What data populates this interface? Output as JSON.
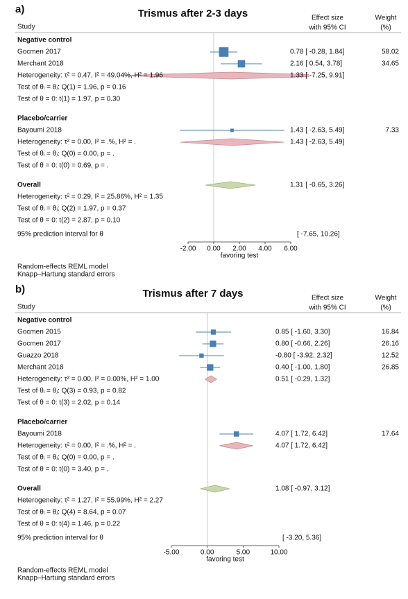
{
  "chart_data": [
    {
      "type": "forest",
      "panel": "a)",
      "title": "Trismus after 2-3 days",
      "columns": {
        "study": "Study",
        "effect": [
          "Effect size",
          "with 95% CI"
        ],
        "weight": [
          "Weight",
          "(%)"
        ]
      },
      "xlim": [
        -2,
        6
      ],
      "xticks": [
        {
          "value": -2,
          "label": "-2.00"
        },
        {
          "value": 0,
          "label": "0.00"
        },
        {
          "value": 2,
          "label": "2.00"
        },
        {
          "value": 4,
          "label": "4.00"
        },
        {
          "value": 6,
          "label": "6.00"
        }
      ],
      "xlabel": "favoring test",
      "colors": {
        "study": "#4a80b2",
        "pooled": "#e7b7bb",
        "pooled_edge": "#c98b92",
        "overall": "#cad7ad",
        "overall_edge": "#9fb27c",
        "null_line": "#c8c8c8"
      },
      "groups": [
        {
          "name": "Negative control",
          "studies": [
            {
              "name": "Gocmen 2017",
              "values": [
                0.78,
                -0.28,
                1.84
              ],
              "value_labels": "0.78 [ -0.28, 1.84]",
              "weight": 58.02
            },
            {
              "name": "Merchant 2018",
              "values": [
                2.16,
                0.54,
                3.78
              ],
              "value_labels": "2.16 [  0.54, 3.78]",
              "weight": 34.65
            }
          ],
          "pooled": {
            "values": [
              1.33,
              -7.25,
              9.91
            ],
            "value_labels": "1.33 [ -7.25, 9.91]",
            "heterogeneity": "Heterogeneity: τ² = 0.47, I² = 49.04%, H² = 1.96",
            "tests": [
              "Test of θᵢ = θⱼ: Q(1) = 1.96, p = 0.16",
              "Test of θ = 0: t(1) = 1.97, p = 0.30"
            ]
          }
        },
        {
          "name": "Placebo/carrier",
          "studies": [
            {
              "name": "Bayoumi 2018",
              "values": [
                1.43,
                -2.63,
                5.49
              ],
              "value_labels": "1.43 [ -2.63, 5.49]",
              "weight": 7.33
            }
          ],
          "pooled": {
            "values": [
              1.43,
              -2.63,
              5.49
            ],
            "value_labels": "1.43 [ -2.63, 5.49]",
            "heterogeneity": "Heterogeneity: τ² = 0.00, I² = .%, H² = .",
            "tests": [
              "Test of θᵢ = θⱼ: Q(0) = 0.00, p = .",
              "Test of θ = 0: t(0) = 0.69, p = ."
            ]
          }
        }
      ],
      "overall": {
        "name": "Overall",
        "values": [
          1.31,
          -0.65,
          3.26
        ],
        "value_labels": "1.31 [ -0.65, 3.26]",
        "heterogeneity": "Heterogeneity: τ² = 0.29, I² = 25.86%, H² = 1.35",
        "tests": [
          "Test of θᵢ = θⱼ: Q(2) = 1.97, p = 0.37",
          "Test of θ = 0: t(2) = 2.87, p = 0.10"
        ]
      },
      "prediction": "95% prediction interval for θ",
      "prediction_interval": "[ -7.65, 10.26]",
      "notes": [
        "Random-effects REML model",
        "Knapp–Hartung standard errors"
      ]
    },
    {
      "type": "forest",
      "panel": "b)",
      "title": "Trismus after 7 days",
      "columns": {
        "study": "Study",
        "effect": [
          "Effect size",
          "with 95% CI"
        ],
        "weight": [
          "Weight",
          "(%)"
        ]
      },
      "xlim": [
        -5,
        10
      ],
      "xticks": [
        {
          "value": -5,
          "label": "-5.00"
        },
        {
          "value": 0,
          "label": "0.00"
        },
        {
          "value": 5,
          "label": "5.00"
        },
        {
          "value": 10,
          "label": "10.00"
        }
      ],
      "xlabel": "favoring test",
      "colors": {
        "study": "#4a80b2",
        "pooled": "#e7b7bb",
        "pooled_edge": "#c98b92",
        "overall": "#cad7ad",
        "overall_edge": "#9fb27c",
        "null_line": "#c8c8c8"
      },
      "groups": [
        {
          "name": "Negative control",
          "studies": [
            {
              "name": "Gocmen 2015",
              "values": [
                0.85,
                -1.6,
                3.3
              ],
              "value_labels": "0.85 [ -1.60, 3.30]",
              "weight": 16.84
            },
            {
              "name": "Gocmen 2017",
              "values": [
                0.8,
                -0.66,
                2.26
              ],
              "value_labels": "0.80 [ -0.66, 2.26]",
              "weight": 26.16
            },
            {
              "name": "Guazzo 2018",
              "values": [
                -0.8,
                -3.92,
                2.32
              ],
              "value_labels": "-0.80 [ -3.92, 2.32]",
              "weight": 12.52
            },
            {
              "name": "Merchant 2018",
              "values": [
                0.4,
                -1.0,
                1.8
              ],
              "value_labels": "0.40 [ -1.00, 1.80]",
              "weight": 26.85
            }
          ],
          "pooled": {
            "values": [
              0.51,
              -0.29,
              1.32
            ],
            "value_labels": "0.51 [ -0.29, 1.32]",
            "heterogeneity": "Heterogeneity: τ² = 0.00, I² = 0.00%, H² = 1.00",
            "tests": [
              "Test of θᵢ = θⱼ: Q(3) = 0.93, p = 0.82",
              "Test of θ = 0: t(3) = 2.02, p = 0.14"
            ]
          }
        },
        {
          "name": "Placebo/carrier",
          "studies": [
            {
              "name": "Bayoumi 2018",
              "values": [
                4.07,
                1.72,
                6.42
              ],
              "value_labels": "4.07 [  1.72, 6.42]",
              "weight": 17.64
            }
          ],
          "pooled": {
            "values": [
              4.07,
              1.72,
              6.42
            ],
            "value_labels": "4.07 [  1.72, 6.42]",
            "heterogeneity": "Heterogeneity: τ² = 0.00, I² = .%, H² = .",
            "tests": [
              "Test of θᵢ = θⱼ: Q(0) = 0.00, p = .",
              "Test of θ = 0: t(0) = 3.40, p = ."
            ]
          }
        }
      ],
      "overall": {
        "name": "Overall",
        "values": [
          1.08,
          -0.97,
          3.12
        ],
        "value_labels": "1.08 [ -0.97, 3.12]",
        "heterogeneity": "Heterogeneity: τ² = 1.27, I² = 55.99%, H² = 2.27",
        "tests": [
          "Test of θᵢ = θⱼ: Q(4) = 8.64, p = 0.07",
          "Test of θ = 0: t(4) = 1.46, p = 0.22"
        ]
      },
      "prediction": "95% prediction interval for θ",
      "prediction_interval": "[ -3.20, 5.36]",
      "notes": [
        "Random-effects REML model",
        "Knapp–Hartung standard errors"
      ]
    }
  ]
}
